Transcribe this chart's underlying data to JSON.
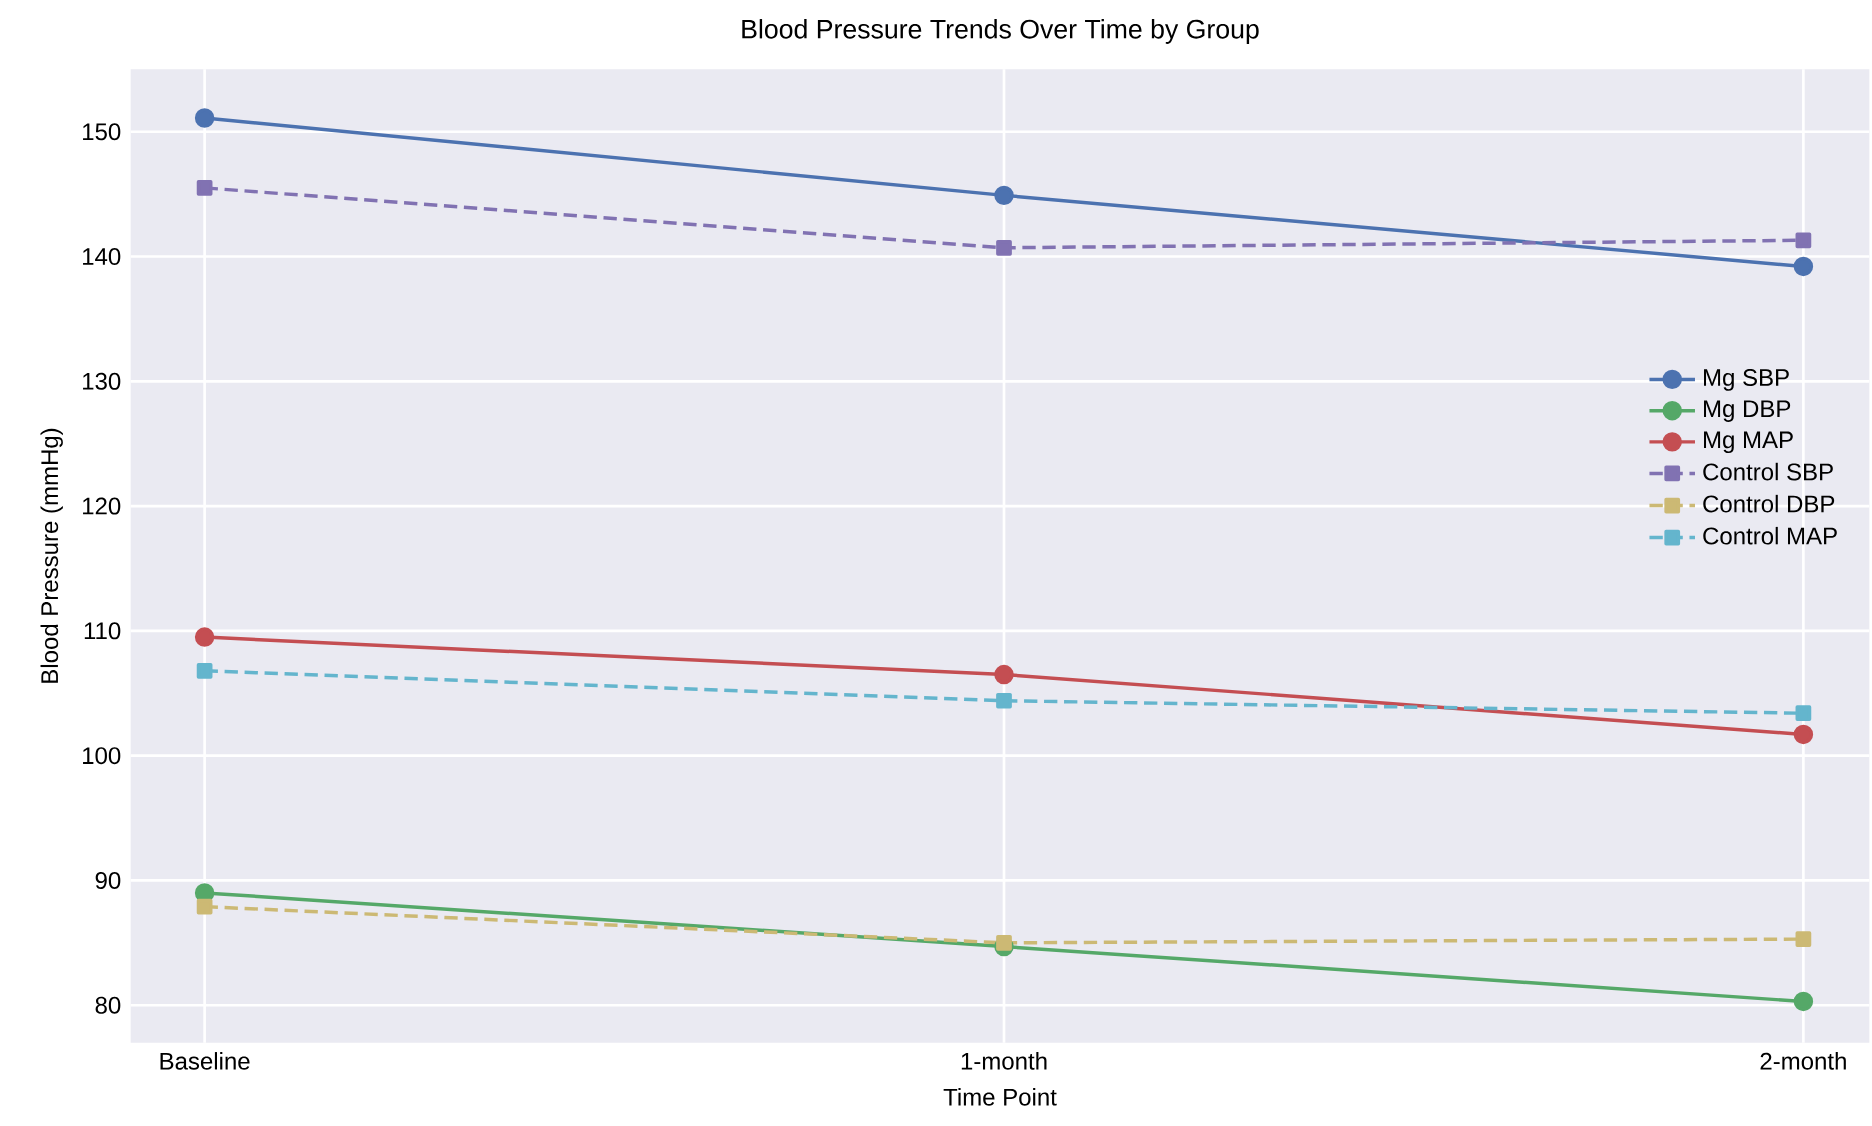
{
  "chart_data": {
    "type": "line",
    "title": "Blood Pressure Trends Over Time by Group",
    "xlabel": "Time Point",
    "ylabel": "Blood Pressure (mmHg)",
    "categories": [
      "Baseline",
      "1-month",
      "2-month"
    ],
    "series": [
      {
        "name": "Mg SBP",
        "color": "#4c72b0",
        "values": [
          151.1,
          144.9,
          139.2
        ],
        "marker": "circle",
        "line_style": "solid"
      },
      {
        "name": "Mg DBP",
        "color": "#55a868",
        "values": [
          89.0,
          84.7,
          80.3
        ],
        "marker": "circle",
        "line_style": "solid"
      },
      {
        "name": "Mg MAP",
        "color": "#c44e52",
        "values": [
          109.5,
          106.5,
          101.7
        ],
        "marker": "circle",
        "line_style": "solid"
      },
      {
        "name": "Control SBP",
        "color": "#8172b2",
        "values": [
          145.5,
          140.7,
          141.3
        ],
        "marker": "square",
        "line_style": "dashed"
      },
      {
        "name": "Control DBP",
        "color": "#ccb974",
        "values": [
          87.9,
          85.0,
          85.3
        ],
        "marker": "square",
        "line_style": "dashed"
      },
      {
        "name": "Control MAP",
        "color": "#64b5cd",
        "values": [
          106.8,
          104.4,
          103.4
        ],
        "marker": "square",
        "line_style": "dashed"
      }
    ],
    "ylim": [
      77,
      155
    ],
    "yticks": [
      80,
      90,
      100,
      110,
      120,
      130,
      140,
      150
    ],
    "grid": true,
    "legend": "right"
  }
}
